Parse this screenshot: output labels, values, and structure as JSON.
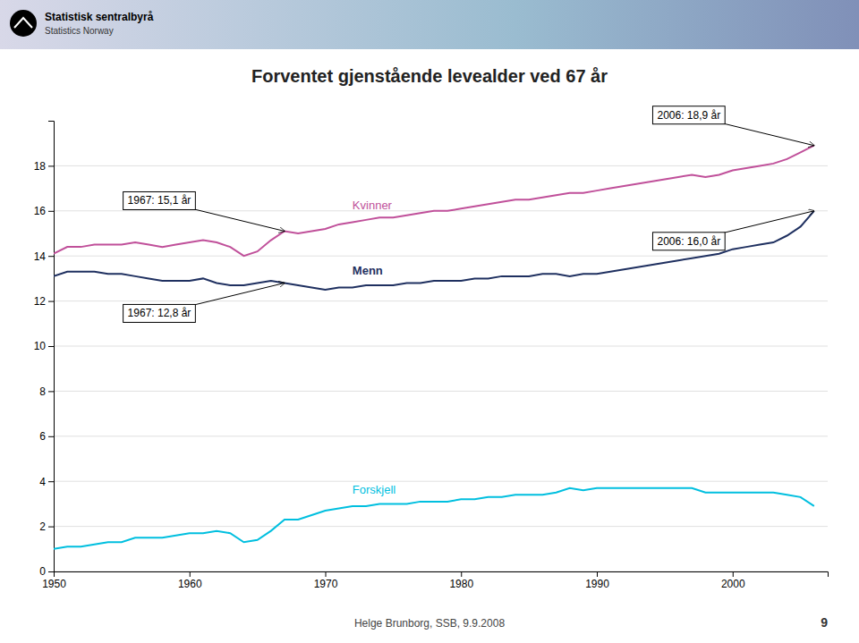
{
  "chart_data": {
    "type": "line",
    "title": "Forventet gjenstående levealder ved 67 år",
    "header_texts": [
      "Statistisk sentralbyrå",
      "Statistics Norway"
    ],
    "footer": "Helge Brunborg, SSB, 9.9.2008",
    "page_number": "9",
    "x": [
      1950,
      1951,
      1952,
      1953,
      1954,
      1955,
      1956,
      1957,
      1958,
      1959,
      1960,
      1961,
      1962,
      1963,
      1964,
      1965,
      1966,
      1967,
      1968,
      1969,
      1970,
      1971,
      1972,
      1973,
      1974,
      1975,
      1976,
      1977,
      1978,
      1979,
      1980,
      1981,
      1982,
      1983,
      1984,
      1985,
      1986,
      1987,
      1988,
      1989,
      1990,
      1991,
      1992,
      1993,
      1994,
      1995,
      1996,
      1997,
      1998,
      1999,
      2000,
      2001,
      2002,
      2003,
      2004,
      2005,
      2006
    ],
    "series": [
      {
        "name": "Kvinner",
        "color": "#C0509A",
        "values": [
          14.1,
          14.4,
          14.4,
          14.5,
          14.5,
          14.5,
          14.6,
          14.5,
          14.4,
          14.5,
          14.6,
          14.7,
          14.6,
          14.4,
          14.0,
          14.2,
          14.7,
          15.1,
          15.0,
          15.1,
          15.2,
          15.4,
          15.5,
          15.6,
          15.7,
          15.7,
          15.8,
          15.9,
          16.0,
          16.0,
          16.1,
          16.2,
          16.3,
          16.4,
          16.5,
          16.5,
          16.6,
          16.7,
          16.8,
          16.8,
          16.9,
          17.0,
          17.1,
          17.2,
          17.3,
          17.4,
          17.5,
          17.6,
          17.5,
          17.6,
          17.8,
          17.9,
          18.0,
          18.1,
          18.3,
          18.6,
          18.9
        ]
      },
      {
        "name": "Menn",
        "color": "#1F3060",
        "values": [
          13.1,
          13.3,
          13.3,
          13.3,
          13.2,
          13.2,
          13.1,
          13.0,
          12.9,
          12.9,
          12.9,
          13.0,
          12.8,
          12.7,
          12.7,
          12.8,
          12.9,
          12.8,
          12.7,
          12.6,
          12.5,
          12.6,
          12.6,
          12.7,
          12.7,
          12.7,
          12.8,
          12.8,
          12.9,
          12.9,
          12.9,
          13.0,
          13.0,
          13.1,
          13.1,
          13.1,
          13.2,
          13.2,
          13.1,
          13.2,
          13.2,
          13.3,
          13.4,
          13.5,
          13.6,
          13.7,
          13.8,
          13.9,
          14.0,
          14.1,
          14.3,
          14.4,
          14.5,
          14.6,
          14.9,
          15.3,
          16.0
        ]
      },
      {
        "name": "Forskjell",
        "color": "#00BFDF",
        "values": [
          1.0,
          1.1,
          1.1,
          1.2,
          1.3,
          1.3,
          1.5,
          1.5,
          1.5,
          1.6,
          1.7,
          1.7,
          1.8,
          1.7,
          1.3,
          1.4,
          1.8,
          2.3,
          2.3,
          2.5,
          2.7,
          2.8,
          2.9,
          2.9,
          3.0,
          3.0,
          3.0,
          3.1,
          3.1,
          3.1,
          3.2,
          3.2,
          3.3,
          3.3,
          3.4,
          3.4,
          3.4,
          3.5,
          3.7,
          3.6,
          3.7,
          3.7,
          3.7,
          3.7,
          3.7,
          3.7,
          3.7,
          3.7,
          3.5,
          3.5,
          3.5,
          3.5,
          3.5,
          3.5,
          3.4,
          3.3,
          2.9
        ]
      }
    ],
    "annotations": [
      {
        "text": "1967: 15,1 år",
        "x": 1967,
        "y": 15.1
      },
      {
        "text": "1967: 12,8 år",
        "x": 1967,
        "y": 12.8
      },
      {
        "text": "2006: 18,9 år",
        "x": 2006,
        "y": 18.9
      },
      {
        "text": "2006: 16,0 år",
        "x": 2006,
        "y": 16.0
      }
    ],
    "xlim": [
      1950,
      2007
    ],
    "xticks": [
      1950,
      1960,
      1970,
      1980,
      1990,
      2000
    ],
    "ylim": [
      0,
      20
    ],
    "yticks": [
      0,
      2,
      4,
      6,
      8,
      10,
      12,
      14,
      16,
      18
    ],
    "grid": true
  }
}
